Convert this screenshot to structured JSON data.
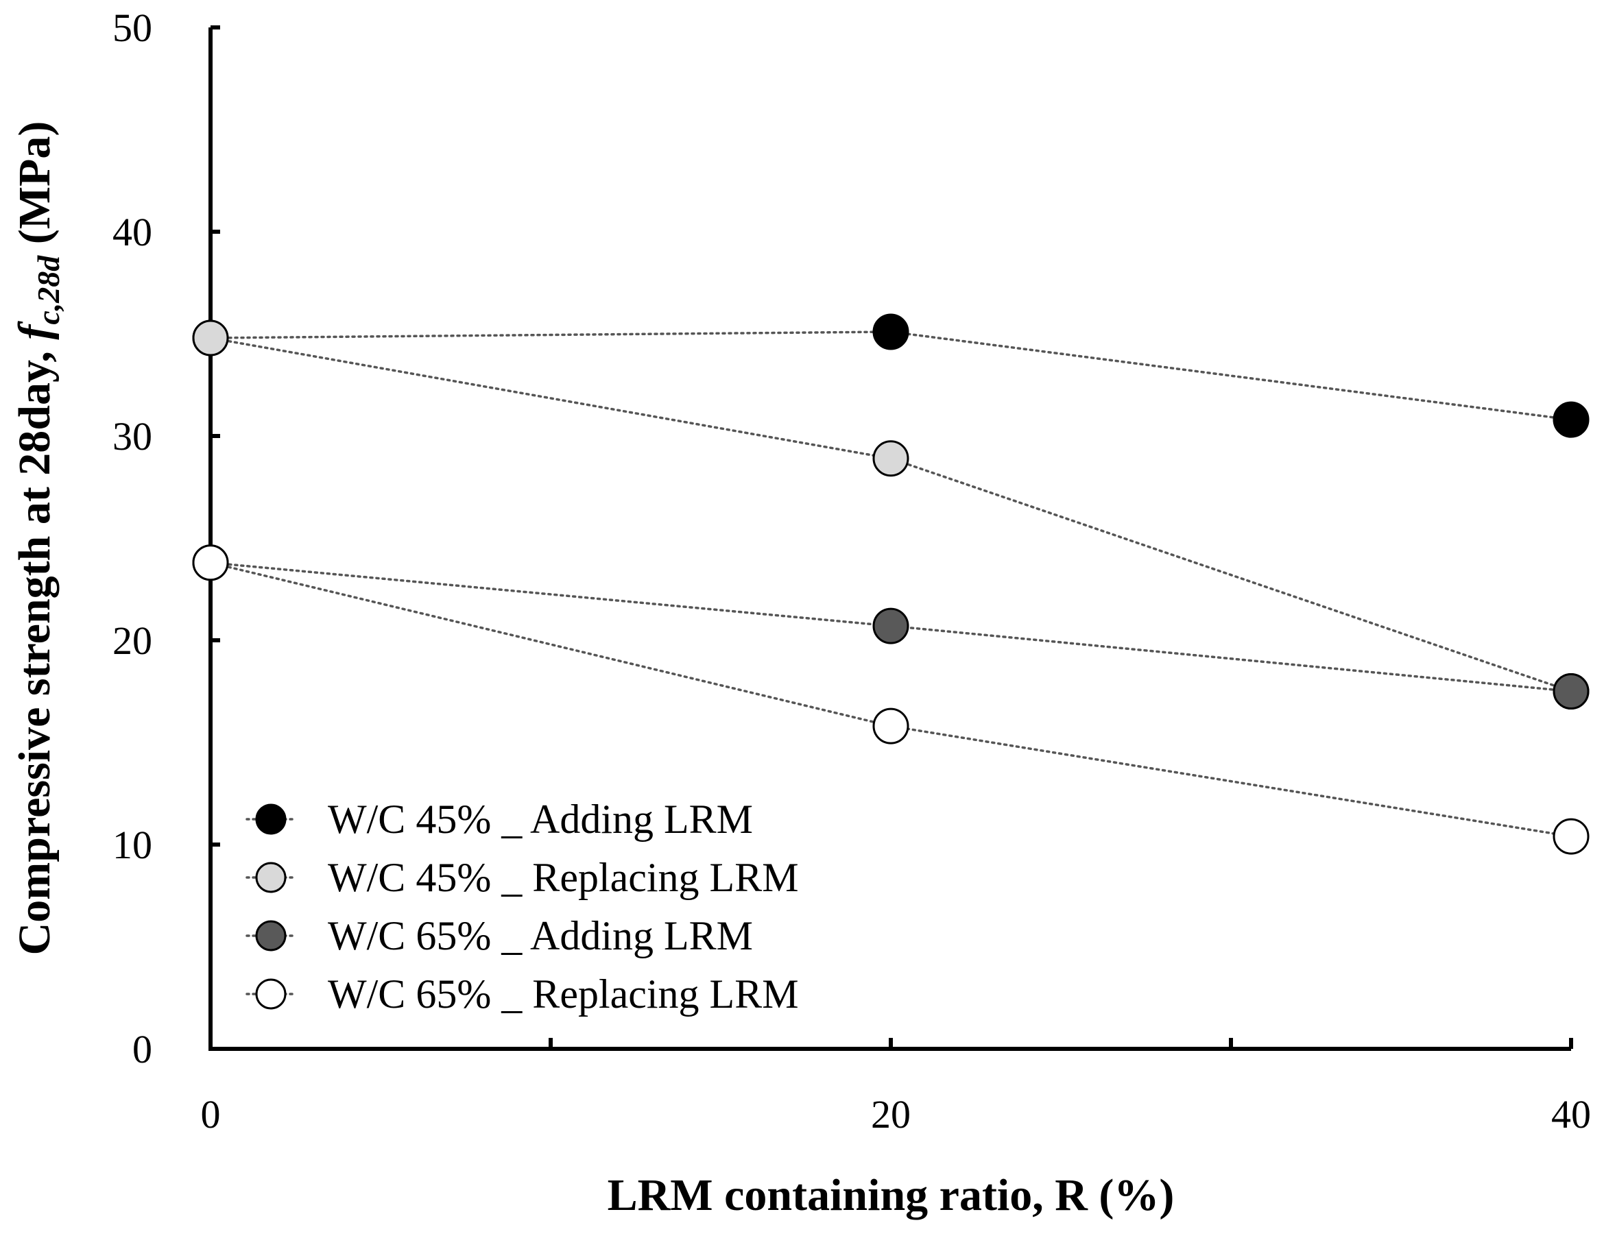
{
  "chart_data": {
    "type": "scatter",
    "ylabel_prefix": "Compressive strength at 28day, ",
    "ylabel_symbol": "f",
    "ylabel_subscript": "c,28d",
    "ylabel_suffix": " (MPa)",
    "xlabel": "LRM containing ratio, R (%)",
    "xlim": [
      0,
      40
    ],
    "ylim": [
      0,
      50
    ],
    "x_ticks": [
      0,
      20,
      40
    ],
    "x_minor_ticks": [
      10,
      30
    ],
    "y_ticks": [
      0,
      10,
      20,
      30,
      40,
      50
    ],
    "legend_position": "bottom-left",
    "series": [
      {
        "name": "W/C 45% _ Adding LRM",
        "fill": "#000000",
        "x": [
          0,
          20,
          40
        ],
        "values": [
          34.8,
          35.1,
          30.8
        ]
      },
      {
        "name": "W/C 45% _ Replacing LRM",
        "fill": "#d9d9d9",
        "x": [
          0,
          20,
          40
        ],
        "values": [
          34.8,
          28.9,
          17.5
        ]
      },
      {
        "name": "W/C 65% _ Adding LRM",
        "fill": "#595959",
        "x": [
          0,
          20,
          40
        ],
        "values": [
          23.8,
          20.7,
          17.5
        ]
      },
      {
        "name": "W/C 65% _ Replacing LRM",
        "fill": "#ffffff",
        "x": [
          0,
          20,
          40
        ],
        "values": [
          23.8,
          15.8,
          10.4
        ]
      }
    ]
  }
}
